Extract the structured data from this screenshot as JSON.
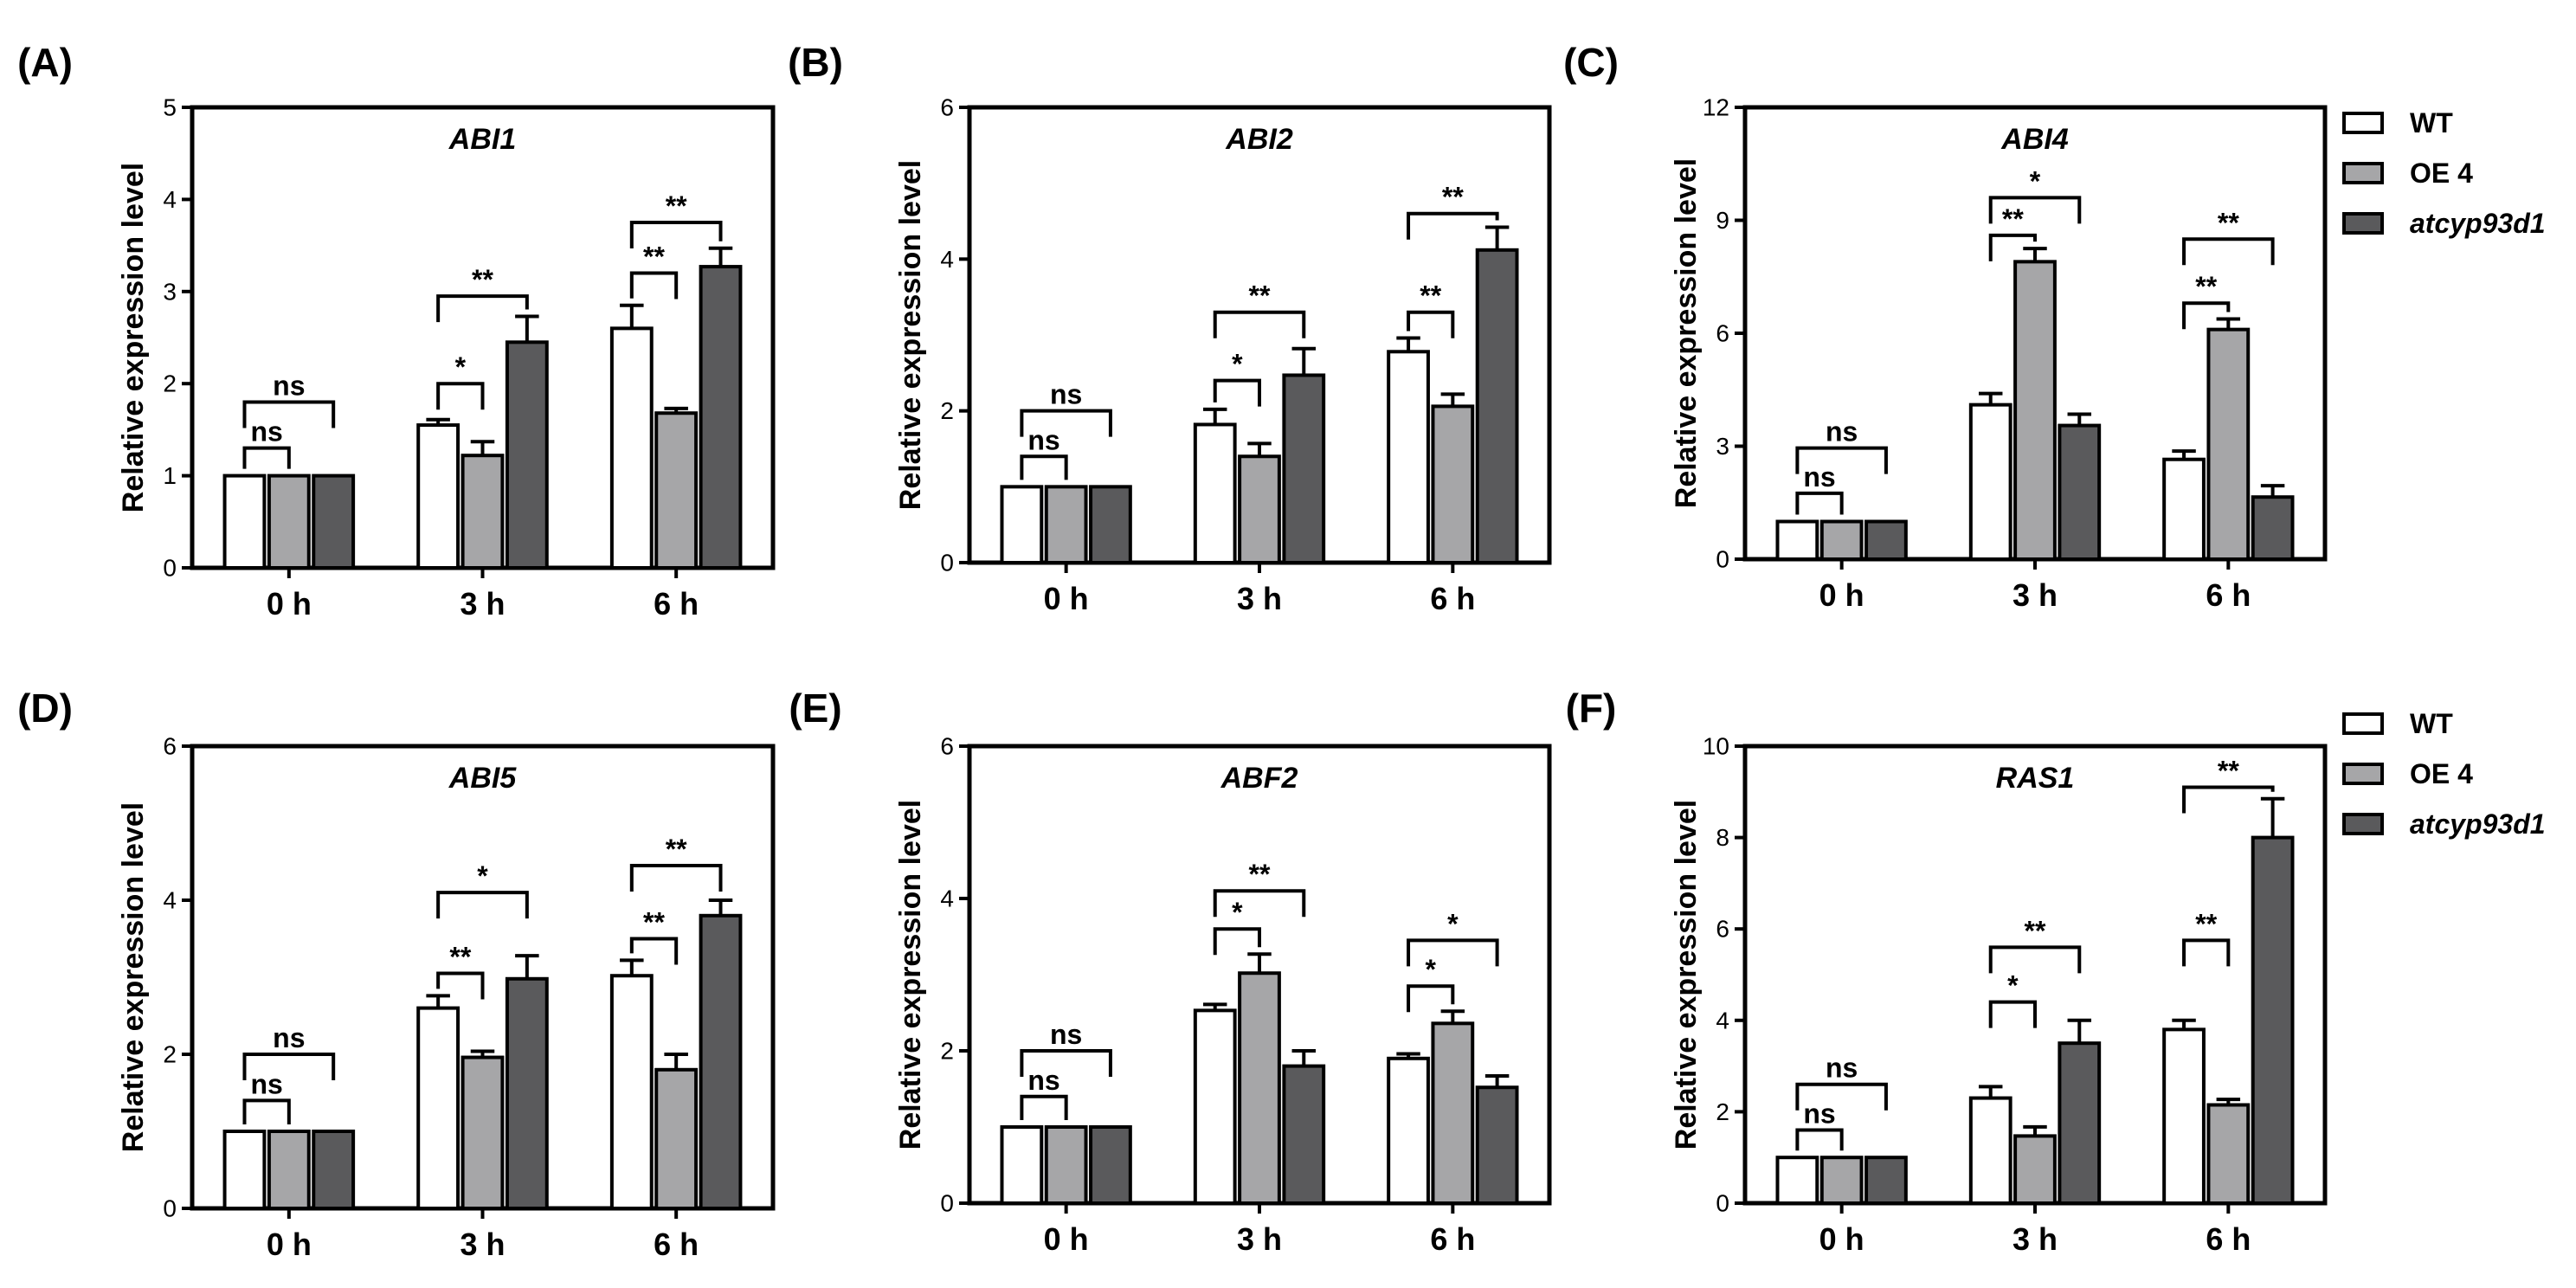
{
  "colors": {
    "WT": "#ffffff",
    "OE 4": "#a6a6a8",
    "atcyp93d1": "#5a5a5c",
    "axis": "#000000"
  },
  "legend": {
    "entries": [
      {
        "label": "WT",
        "italic": false
      },
      {
        "label": "OE 4",
        "italic": false
      },
      {
        "label": "atcyp93d1",
        "italic": true
      }
    ]
  },
  "chart_data": [
    {
      "panel": "(A)",
      "gene": "ABI1",
      "type": "bar",
      "ylabel": "Relative expression level",
      "ylim": [
        0,
        5
      ],
      "yticks": [
        0,
        1,
        2,
        3,
        4,
        5
      ],
      "categories": [
        "0 h",
        "3 h",
        "6 h"
      ],
      "series": [
        {
          "name": "WT",
          "values": [
            1.0,
            1.55,
            2.6
          ],
          "errors": [
            0.0,
            0.06,
            0.25
          ]
        },
        {
          "name": "OE 4",
          "values": [
            1.0,
            1.22,
            1.68
          ],
          "errors": [
            0.0,
            0.15,
            0.05
          ]
        },
        {
          "name": "atcyp93d1",
          "values": [
            1.0,
            2.45,
            3.27
          ],
          "errors": [
            0.0,
            0.28,
            0.2
          ]
        }
      ],
      "significance": [
        {
          "cat": 0,
          "from": 0,
          "to": 1,
          "label": "ns",
          "y": 1.3
        },
        {
          "cat": 0,
          "from": 0,
          "to": 2,
          "label": "ns",
          "y": 1.8
        },
        {
          "cat": 1,
          "from": 0,
          "to": 1,
          "label": "*",
          "y": 2.0
        },
        {
          "cat": 1,
          "from": 0,
          "to": 2,
          "label": "**",
          "y": 2.95
        },
        {
          "cat": 2,
          "from": 0,
          "to": 1,
          "label": "**",
          "y": 3.2
        },
        {
          "cat": 2,
          "from": 0,
          "to": 2,
          "label": "**",
          "y": 3.75
        }
      ]
    },
    {
      "panel": "(B)",
      "gene": "ABI2",
      "type": "bar",
      "ylabel": "Relative expression level",
      "ylim": [
        0,
        6
      ],
      "yticks": [
        0,
        2,
        4,
        6
      ],
      "categories": [
        "0 h",
        "3 h",
        "6 h"
      ],
      "series": [
        {
          "name": "WT",
          "values": [
            1.0,
            1.82,
            2.78
          ],
          "errors": [
            0.0,
            0.2,
            0.18
          ]
        },
        {
          "name": "OE 4",
          "values": [
            1.0,
            1.4,
            2.06
          ],
          "errors": [
            0.0,
            0.17,
            0.16
          ]
        },
        {
          "name": "atcyp93d1",
          "values": [
            1.0,
            2.47,
            4.12
          ],
          "errors": [
            0.0,
            0.35,
            0.3
          ]
        }
      ],
      "significance": [
        {
          "cat": 0,
          "from": 0,
          "to": 1,
          "label": "ns",
          "y": 1.4
        },
        {
          "cat": 0,
          "from": 0,
          "to": 2,
          "label": "ns",
          "y": 2.0
        },
        {
          "cat": 1,
          "from": 0,
          "to": 1,
          "label": "*",
          "y": 2.4
        },
        {
          "cat": 1,
          "from": 0,
          "to": 2,
          "label": "**",
          "y": 3.3
        },
        {
          "cat": 2,
          "from": 0,
          "to": 1,
          "label": "**",
          "y": 3.3
        },
        {
          "cat": 2,
          "from": 0,
          "to": 2,
          "label": "**",
          "y": 4.6
        }
      ]
    },
    {
      "panel": "(C)",
      "gene": "ABI4",
      "type": "bar",
      "ylabel": "Relative expression level",
      "ylim": [
        0,
        12
      ],
      "yticks": [
        0,
        3,
        6,
        9,
        12
      ],
      "categories": [
        "0 h",
        "3 h",
        "6 h"
      ],
      "series": [
        {
          "name": "WT",
          "values": [
            1.0,
            4.1,
            2.65
          ],
          "errors": [
            0.0,
            0.3,
            0.22
          ]
        },
        {
          "name": "OE 4",
          "values": [
            1.0,
            7.9,
            6.1
          ],
          "errors": [
            0.0,
            0.35,
            0.28
          ]
        },
        {
          "name": "atcyp93d1",
          "values": [
            1.0,
            3.55,
            1.65
          ],
          "errors": [
            0.0,
            0.3,
            0.3
          ]
        }
      ],
      "significance": [
        {
          "cat": 0,
          "from": 0,
          "to": 1,
          "label": "ns",
          "y": 1.75
        },
        {
          "cat": 0,
          "from": 0,
          "to": 2,
          "label": "ns",
          "y": 2.95
        },
        {
          "cat": 1,
          "from": 0,
          "to": 1,
          "label": "**",
          "y": 8.6
        },
        {
          "cat": 1,
          "from": 0,
          "to": 2,
          "label": "*",
          "y": 9.6
        },
        {
          "cat": 2,
          "from": 0,
          "to": 1,
          "label": "**",
          "y": 6.8
        },
        {
          "cat": 2,
          "from": 0,
          "to": 2,
          "label": "**",
          "y": 8.5
        }
      ]
    },
    {
      "panel": "(D)",
      "gene": "ABI5",
      "type": "bar",
      "ylabel": "Relative expression level",
      "ylim": [
        0,
        6
      ],
      "yticks": [
        0,
        2,
        4,
        6
      ],
      "categories": [
        "0 h",
        "3 h",
        "6 h"
      ],
      "series": [
        {
          "name": "WT",
          "values": [
            1.0,
            2.6,
            3.02
          ],
          "errors": [
            0.0,
            0.16,
            0.2
          ]
        },
        {
          "name": "OE 4",
          "values": [
            1.0,
            1.96,
            1.8
          ],
          "errors": [
            0.0,
            0.08,
            0.2
          ]
        },
        {
          "name": "atcyp93d1",
          "values": [
            1.0,
            2.98,
            3.8
          ],
          "errors": [
            0.0,
            0.3,
            0.2
          ]
        }
      ],
      "significance": [
        {
          "cat": 0,
          "from": 0,
          "to": 1,
          "label": "ns",
          "y": 1.4
        },
        {
          "cat": 0,
          "from": 0,
          "to": 2,
          "label": "ns",
          "y": 2.0
        },
        {
          "cat": 1,
          "from": 0,
          "to": 1,
          "label": "**",
          "y": 3.05
        },
        {
          "cat": 1,
          "from": 0,
          "to": 2,
          "label": "*",
          "y": 4.1
        },
        {
          "cat": 2,
          "from": 0,
          "to": 1,
          "label": "**",
          "y": 3.5
        },
        {
          "cat": 2,
          "from": 0,
          "to": 2,
          "label": "**",
          "y": 4.45
        }
      ]
    },
    {
      "panel": "(E)",
      "gene": "ABF2",
      "type": "bar",
      "ylabel": "Relative expression level",
      "ylim": [
        0,
        6
      ],
      "yticks": [
        0,
        2,
        4,
        6
      ],
      "categories": [
        "0 h",
        "3 h",
        "6 h"
      ],
      "series": [
        {
          "name": "WT",
          "values": [
            1.0,
            2.53,
            1.9
          ],
          "errors": [
            0.0,
            0.08,
            0.06
          ]
        },
        {
          "name": "OE 4",
          "values": [
            1.0,
            3.02,
            2.36
          ],
          "errors": [
            0.0,
            0.25,
            0.16
          ]
        },
        {
          "name": "atcyp93d1",
          "values": [
            1.0,
            1.8,
            1.52
          ],
          "errors": [
            0.0,
            0.2,
            0.15
          ]
        }
      ],
      "significance": [
        {
          "cat": 0,
          "from": 0,
          "to": 1,
          "label": "ns",
          "y": 1.4
        },
        {
          "cat": 0,
          "from": 0,
          "to": 2,
          "label": "ns",
          "y": 2.0
        },
        {
          "cat": 1,
          "from": 0,
          "to": 1,
          "label": "*",
          "y": 3.6
        },
        {
          "cat": 1,
          "from": 0,
          "to": 2,
          "label": "**",
          "y": 4.1
        },
        {
          "cat": 2,
          "from": 0,
          "to": 1,
          "label": "*",
          "y": 2.85
        },
        {
          "cat": 2,
          "from": 0,
          "to": 2,
          "label": "*",
          "y": 3.45
        }
      ]
    },
    {
      "panel": "(F)",
      "gene": "RAS1",
      "type": "bar",
      "ylabel": "Relative expression level",
      "ylim": [
        0,
        10
      ],
      "yticks": [
        0,
        2,
        4,
        6,
        8,
        10
      ],
      "categories": [
        "0 h",
        "3 h",
        "6 h"
      ],
      "series": [
        {
          "name": "WT",
          "values": [
            1.0,
            2.3,
            3.8
          ],
          "errors": [
            0.0,
            0.25,
            0.2
          ]
        },
        {
          "name": "OE 4",
          "values": [
            1.0,
            1.47,
            2.15
          ],
          "errors": [
            0.0,
            0.2,
            0.12
          ]
        },
        {
          "name": "atcyp93d1",
          "values": [
            1.0,
            3.5,
            8.0
          ],
          "errors": [
            0.0,
            0.5,
            0.85
          ]
        }
      ],
      "significance": [
        {
          "cat": 0,
          "from": 0,
          "to": 1,
          "label": "ns",
          "y": 1.6
        },
        {
          "cat": 0,
          "from": 0,
          "to": 2,
          "label": "ns",
          "y": 2.6
        },
        {
          "cat": 1,
          "from": 0,
          "to": 1,
          "label": "*",
          "y": 4.4
        },
        {
          "cat": 1,
          "from": 0,
          "to": 2,
          "label": "**",
          "y": 5.6
        },
        {
          "cat": 2,
          "from": 0,
          "to": 1,
          "label": "**",
          "y": 5.75
        },
        {
          "cat": 2,
          "from": 0,
          "to": 2,
          "label": "**",
          "y": 9.1
        }
      ]
    }
  ]
}
